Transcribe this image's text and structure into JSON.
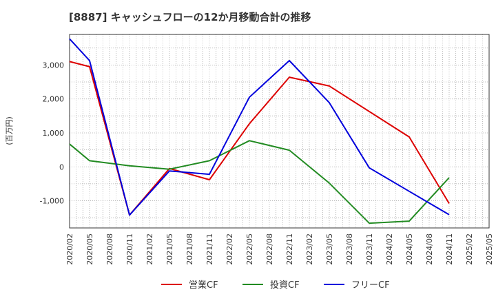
{
  "chart_data": {
    "type": "line",
    "title": "[8887]  キャッシュフローの12か月移動合計の推移",
    "ylabel": "(百万円)",
    "xlabel": "",
    "ylim": [
      -1800,
      3900
    ],
    "yticks": [
      -1000,
      0,
      1000,
      2000,
      3000
    ],
    "ytick_labels": [
      "-1,000",
      "0",
      "1,000",
      "2,000",
      "3,000"
    ],
    "categories": [
      "2020/02",
      "2020/05",
      "2020/08",
      "2020/11",
      "2021/02",
      "2021/05",
      "2021/08",
      "2021/11",
      "2022/02",
      "2022/05",
      "2022/08",
      "2022/11",
      "2023/02",
      "2023/05",
      "2023/08",
      "2023/11",
      "2024/02",
      "2024/05",
      "2024/08",
      "2024/11",
      "2025/02",
      "2025/05"
    ],
    "grid": true,
    "legend_position": "bottom",
    "series": [
      {
        "name": "営業CF",
        "color": "#dd0000",
        "x": [
          "2020/02",
          "2020/05",
          "2020/11",
          "2021/05",
          "2021/11",
          "2022/05",
          "2022/11",
          "2023/05",
          "2024/05",
          "2024/11"
        ],
        "values": [
          3100,
          2950,
          -1420,
          -50,
          -380,
          1270,
          2640,
          2380,
          880,
          -1080
        ]
      },
      {
        "name": "投資CF",
        "color": "#228b22",
        "x": [
          "2020/02",
          "2020/05",
          "2020/11",
          "2021/05",
          "2021/11",
          "2022/05",
          "2022/11",
          "2023/05",
          "2023/11",
          "2024/05",
          "2024/11"
        ],
        "values": [
          670,
          180,
          30,
          -70,
          180,
          770,
          490,
          -480,
          -1660,
          -1600,
          -320
        ]
      },
      {
        "name": "フリーCF",
        "color": "#0000dd",
        "x": [
          "2020/02",
          "2020/05",
          "2020/11",
          "2021/05",
          "2021/11",
          "2022/05",
          "2022/11",
          "2023/05",
          "2023/11",
          "2024/05",
          "2024/11"
        ],
        "values": [
          3770,
          3130,
          -1420,
          -120,
          -220,
          2050,
          3130,
          1890,
          -30,
          -720,
          -1410
        ]
      }
    ]
  }
}
